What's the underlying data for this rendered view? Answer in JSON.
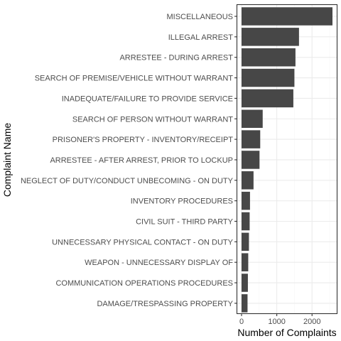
{
  "chart_data": {
    "type": "bar",
    "orientation": "horizontal",
    "xlabel": "Number of Complaints",
    "ylabel": "Complaint Name",
    "xlim": [
      0,
      2700
    ],
    "xticks": [
      0,
      1000,
      2000
    ],
    "grid": true,
    "colors": {
      "bar": "#474747",
      "grid_major": "#ebebeb",
      "grid_minor": "#f5f5f5",
      "panel_border": "#333333"
    },
    "categories": [
      "MISCELLANEOUS",
      "ILLEGAL ARREST",
      "ARRESTEE - DURING ARREST",
      "SEARCH OF PREMISE/VEHICLE WITHOUT WARRANT",
      "INADEQUATE/FAILURE TO PROVIDE SERVICE",
      "SEARCH OF PERSON WITHOUT WARRANT",
      "PRISONER'S PROPERTY - INVENTORY/RECEIPT",
      "ARRESTEE - AFTER ARREST, PRIOR TO LOCKUP",
      "NEGLECT OF DUTY/CONDUCT UNBECOMING - ON DUTY",
      "INVENTORY PROCEDURES",
      "CIVIL SUIT - THIRD PARTY",
      "UNNECESSARY PHYSICAL CONTACT - ON DUTY",
      "WEAPON - UNNECESSARY DISPLAY OF",
      "COMMUNICATION OPERATIONS PROCEDURES",
      "DAMAGE/TRESPASSING PROPERTY"
    ],
    "values": [
      2580,
      1630,
      1530,
      1500,
      1470,
      600,
      530,
      510,
      340,
      240,
      230,
      210,
      190,
      180,
      170
    ]
  }
}
